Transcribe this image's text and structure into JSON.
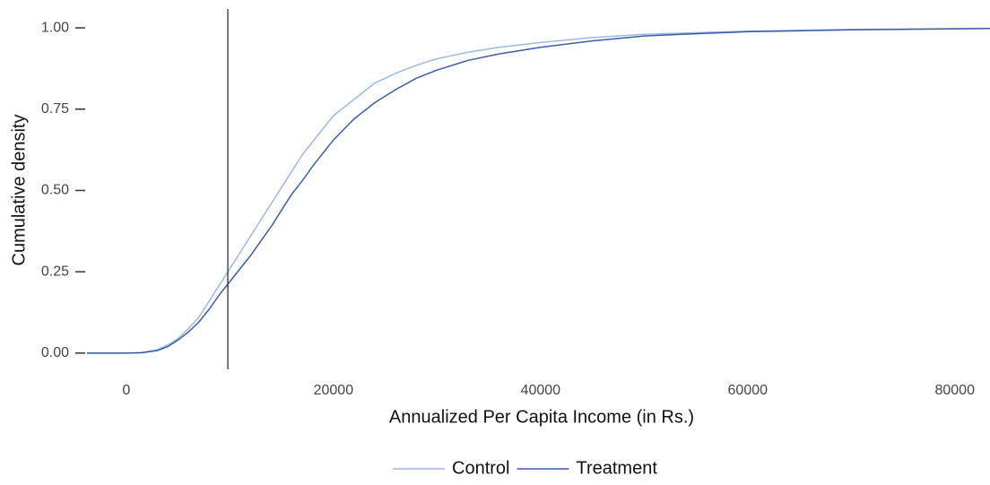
{
  "chart_data": {
    "type": "line",
    "x_label": "Annualized Per Capita Income (in Rs.)",
    "y_label": "Cumulative density",
    "x": [
      -3800,
      0,
      1500,
      3000,
      4000,
      5000,
      6000,
      7000,
      8000,
      9000,
      10000,
      11000,
      12000,
      13000,
      14000,
      15000,
      16000,
      17000,
      18000,
      19000,
      20000,
      22000,
      24000,
      26000,
      28000,
      30000,
      33000,
      36000,
      40000,
      45000,
      50000,
      55000,
      60000,
      70000,
      83400
    ],
    "series": [
      {
        "name": "Control",
        "color": "#9db8e2",
        "values": [
          0,
          0,
          0.002,
          0.01,
          0.025,
          0.045,
          0.075,
          0.11,
          0.16,
          0.21,
          0.26,
          0.31,
          0.36,
          0.41,
          0.46,
          0.51,
          0.56,
          0.61,
          0.65,
          0.69,
          0.73,
          0.78,
          0.83,
          0.86,
          0.885,
          0.905,
          0.925,
          0.94,
          0.955,
          0.97,
          0.98,
          0.985,
          0.99,
          0.995,
          0.998
        ]
      },
      {
        "name": "Treatment",
        "color": "#3b5ca8",
        "values": [
          0,
          0,
          0.001,
          0.008,
          0.02,
          0.04,
          0.065,
          0.095,
          0.135,
          0.18,
          0.22,
          0.26,
          0.3,
          0.345,
          0.39,
          0.44,
          0.49,
          0.53,
          0.575,
          0.615,
          0.655,
          0.72,
          0.77,
          0.81,
          0.845,
          0.87,
          0.9,
          0.92,
          0.94,
          0.96,
          0.975,
          0.982,
          0.988,
          0.994,
          0.998
        ]
      }
    ],
    "vline": 9800,
    "xlim": [
      -3800,
      83400
    ],
    "ylim": [
      -0.05,
      1.058
    ],
    "xticks": [
      0,
      20000,
      40000,
      60000,
      80000
    ],
    "yticks": [
      {
        "value": 0,
        "label": "0.00"
      },
      {
        "value": 0.25,
        "label": "0.25"
      },
      {
        "value": 0.5,
        "label": "0.50"
      },
      {
        "value": 0.75,
        "label": "0.75"
      },
      {
        "value": 1,
        "label": "1.00"
      }
    ],
    "legend": "bottom"
  }
}
